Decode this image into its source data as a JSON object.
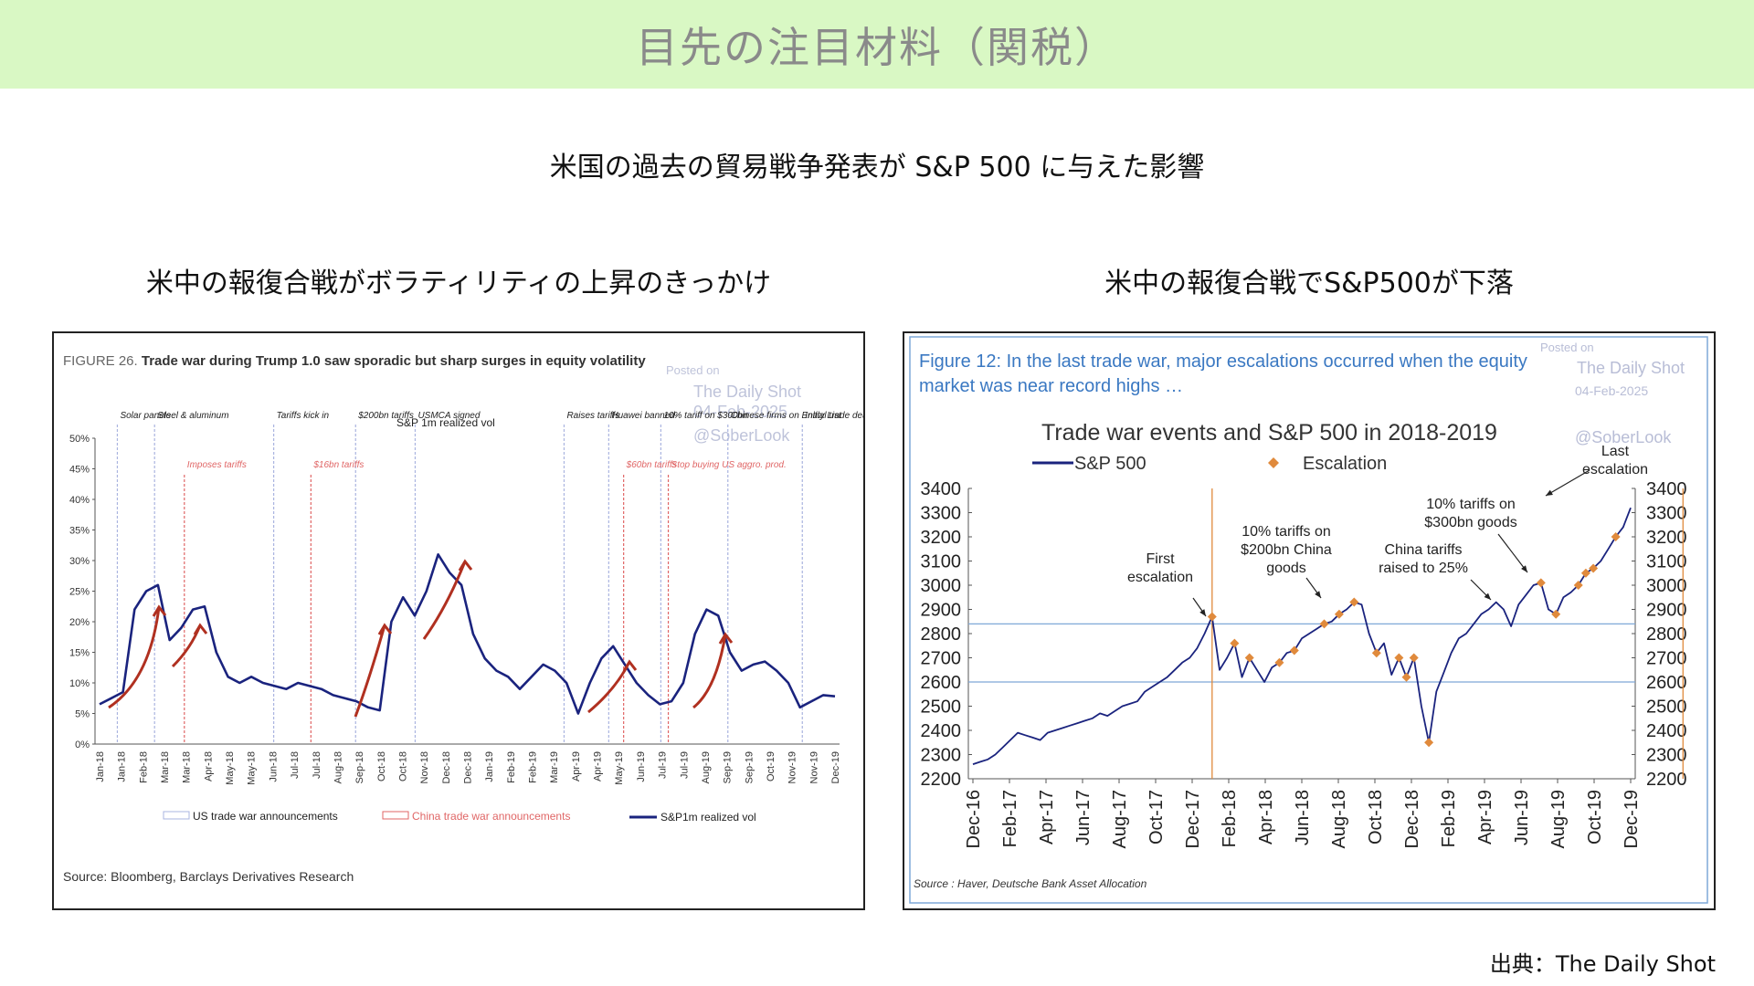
{
  "page": {
    "banner_title": "目先の注目材料（関税）",
    "subtitle": "米国の過去の貿易戦争発表が S&P 500 に与えた影響",
    "left_panel_title": "米中の報復合戦がボラティリティの上昇のきっかけ",
    "right_panel_title": "米中の報復合戦でS&P500が下落",
    "credit": "出典：The Daily Shot"
  },
  "colors": {
    "banner_bg": "#d9f8c4",
    "line_navy": "#1a237e",
    "us_line": "#aab4e0",
    "china_line": "#e06666",
    "arrow_red": "#b03020",
    "orange": "#e08a3c",
    "ref_blue": "#7fa8d8",
    "title_blue": "#3a78c2"
  },
  "chart_data": [
    {
      "type": "line",
      "figure_label": "FIGURE 26.",
      "title": "Trade war during Trump 1.0 saw sporadic but sharp surges in equity volatility",
      "series_label": "S&P 1m realized vol",
      "ylim": [
        0,
        50
      ],
      "y_ticks": [
        "0%",
        "5%",
        "10%",
        "15%",
        "20%",
        "25%",
        "30%",
        "35%",
        "40%",
        "45%",
        "50%"
      ],
      "x_ticks": [
        "Jan-18",
        "Jan-18",
        "Feb-18",
        "Mar-18",
        "Mar-18",
        "Apr-18",
        "May-18",
        "May-18",
        "Jun-18",
        "Jul-18",
        "Jul-18",
        "Aug-18",
        "Sep-18",
        "Oct-18",
        "Oct-18",
        "Nov-18",
        "Dec-18",
        "Dec-18",
        "Jan-19",
        "Feb-19",
        "Feb-19",
        "Mar-19",
        "Apr-19",
        "Apr-19",
        "May-19",
        "Jun-19",
        "Jul-19",
        "Jul-19",
        "Aug-19",
        "Sep-19",
        "Sep-19",
        "Oct-19",
        "Nov-19",
        "Nov-19",
        "Dec-19"
      ],
      "series": [
        {
          "name": "S&P1m realized vol",
          "values": [
            6.5,
            7.5,
            8.5,
            22,
            25,
            26,
            17,
            19,
            22,
            22.5,
            15,
            11,
            10,
            11,
            10,
            9.5,
            9,
            10,
            9.5,
            9,
            8,
            7.5,
            7,
            6,
            5.5,
            20,
            24,
            21,
            25,
            31,
            28,
            26,
            18,
            14,
            12,
            11,
            9,
            11,
            13,
            12,
            10,
            5,
            10,
            14,
            16,
            13,
            10,
            8,
            6.5,
            7,
            10,
            18,
            22,
            21,
            15,
            12,
            13,
            13.5,
            12,
            10,
            6,
            7,
            8,
            7.8
          ]
        }
      ],
      "us_announcements": [
        {
          "label": "Solar panels",
          "x": 0.03
        },
        {
          "label": "Steel & aluminum",
          "x": 0.08
        },
        {
          "label": "Tariffs kick in",
          "x": 0.24
        },
        {
          "label": "$200bn tariffs",
          "x": 0.35
        },
        {
          "label": "USMCA signed",
          "x": 0.43
        },
        {
          "label": "Raises tariffs",
          "x": 0.63
        },
        {
          "label": "Huawei banned",
          "x": 0.69
        },
        {
          "label": "10% tariff on $300bn",
          "x": 0.76
        },
        {
          "label": "Chinese firms on Entity List",
          "x": 0.85
        },
        {
          "label": "Initial trade deal",
          "x": 0.95
        }
      ],
      "china_announcements": [
        {
          "label": "Imposes tariffs",
          "x": 0.12
        },
        {
          "label": "$16bn tariffs",
          "x": 0.29
        },
        {
          "label": "$60bn tariffs",
          "x": 0.71
        },
        {
          "label": "Stop buying US aggro. prod.",
          "x": 0.77
        }
      ],
      "legend": [
        "US trade war announcements",
        "China trade war announcements",
        "S&P1m realized vol"
      ],
      "watermark": [
        "Posted on",
        "The Daily Shot",
        "04-Feb-2025",
        "@SoberLook"
      ],
      "source": "Source: Bloomberg, Barclays Derivatives Research"
    },
    {
      "type": "line",
      "figure_caption": "Figure 12: In the last trade war, major escalations occurred when the equity market was near record highs …",
      "title": "Trade war events and S&P 500 in 2018-2019",
      "legend": [
        "S&P 500",
        "Escalation"
      ],
      "ylim": [
        2200,
        3400
      ],
      "y_ticks": [
        "2200",
        "2300",
        "2400",
        "2500",
        "2600",
        "2700",
        "2800",
        "2900",
        "3000",
        "3100",
        "3200",
        "3300",
        "3400"
      ],
      "x_ticks": [
        "Dec-16",
        "Feb-17",
        "Apr-17",
        "Jun-17",
        "Aug-17",
        "Oct-17",
        "Dec-17",
        "Feb-18",
        "Apr-18",
        "Jun-18",
        "Aug-18",
        "Oct-18",
        "Dec-18",
        "Feb-19",
        "Apr-19",
        "Jun-19",
        "Aug-19",
        "Oct-19",
        "Dec-19"
      ],
      "series": [
        {
          "name": "S&P 500",
          "values": [
            2260,
            2270,
            2280,
            2300,
            2330,
            2360,
            2390,
            2380,
            2370,
            2360,
            2390,
            2400,
            2410,
            2420,
            2430,
            2440,
            2450,
            2470,
            2460,
            2480,
            2500,
            2510,
            2520,
            2560,
            2580,
            2600,
            2620,
            2650,
            2680,
            2700,
            2740,
            2800,
            2870,
            2650,
            2700,
            2760,
            2620,
            2700,
            2650,
            2600,
            2660,
            2680,
            2720,
            2730,
            2780,
            2800,
            2820,
            2840,
            2850,
            2880,
            2900,
            2930,
            2920,
            2800,
            2720,
            2760,
            2630,
            2700,
            2620,
            2700,
            2500,
            2350,
            2560,
            2640,
            2720,
            2780,
            2800,
            2840,
            2880,
            2900,
            2930,
            2900,
            2830,
            2920,
            2960,
            3000,
            3010,
            2900,
            2880,
            2950,
            2970,
            3000,
            3050,
            3070,
            3100,
            3150,
            3200,
            3240,
            3320
          ]
        }
      ],
      "escalations_x_index": [
        32,
        35,
        37,
        41,
        43,
        47,
        49,
        51,
        54,
        57,
        58,
        59,
        61,
        76,
        78,
        81,
        82,
        83,
        86,
        90,
        94,
        95
      ],
      "reference_lines": [
        2840,
        2600
      ],
      "annotations": [
        "First escalation",
        "10% tariffs on $200bn China goods",
        "China tariffs raised to 25%",
        "10% tariffs on $300bn goods",
        "Last escalation"
      ],
      "watermark": [
        "Posted on",
        "The Daily Shot",
        "04-Feb-2025",
        "@SoberLook"
      ],
      "source": "Source : Haver, Deutsche Bank Asset Allocation"
    }
  ]
}
